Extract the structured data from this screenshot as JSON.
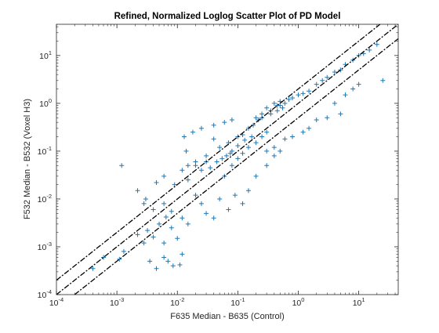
{
  "chart_data": {
    "type": "scatter",
    "title": "Refined, Normalized Loglog Scatter Plot of PD Model",
    "xlabel": "F635 Median - B635 (Control)",
    "ylabel": "F532 Median - B532 (Voxel H3)",
    "xscale": "log",
    "yscale": "log",
    "xlim": [
      0.0001,
      45
    ],
    "ylim": [
      0.0001,
      45
    ],
    "grid": false,
    "marker": "+",
    "marker_color": "#1f77b4",
    "line_color": "#000000",
    "x_ticks": [
      {
        "value": 0.0001,
        "base": "10",
        "exp": "-4"
      },
      {
        "value": 0.001,
        "base": "10",
        "exp": "-3"
      },
      {
        "value": 0.01,
        "base": "10",
        "exp": "-2"
      },
      {
        "value": 0.1,
        "base": "10",
        "exp": "-1"
      },
      {
        "value": 1,
        "base": "10",
        "exp": "0"
      },
      {
        "value": 10,
        "base": "10",
        "exp": "1"
      }
    ],
    "y_ticks": [
      {
        "value": 0.0001,
        "base": "10",
        "exp": "-4"
      },
      {
        "value": 0.001,
        "base": "10",
        "exp": "-3"
      },
      {
        "value": 0.01,
        "base": "10",
        "exp": "-2"
      },
      {
        "value": 0.1,
        "base": "10",
        "exp": "-1"
      },
      {
        "value": 1,
        "base": "10",
        "exp": "0"
      },
      {
        "value": 10,
        "base": "10",
        "exp": "1"
      }
    ],
    "reference_lines": [
      {
        "y_over_x": 2.0,
        "style": "dash-dot"
      },
      {
        "y_over_x": 1.0,
        "style": "dash-dot"
      },
      {
        "y_over_x": 0.5,
        "style": "dash-dot"
      }
    ],
    "series": [
      {
        "points": [
          [
            0.0012,
            0.05
          ],
          [
            0.0006,
            0.0006
          ],
          [
            0.0004,
            0.00035
          ],
          [
            0.0011,
            0.00055
          ],
          [
            0.0013,
            0.0008
          ],
          [
            0.0022,
            0.0018
          ],
          [
            0.0028,
            0.0012
          ],
          [
            0.0035,
            0.0005
          ],
          [
            0.0045,
            0.00035
          ],
          [
            0.006,
            0.0006
          ],
          [
            0.007,
            0.0005
          ],
          [
            0.0085,
            0.0004
          ],
          [
            0.012,
            0.0007
          ],
          [
            0.011,
            0.00042
          ],
          [
            0.006,
            0.0012
          ],
          [
            0.004,
            0.0016
          ],
          [
            0.0032,
            0.0022
          ],
          [
            0.005,
            0.003
          ],
          [
            0.0065,
            0.0042
          ],
          [
            0.008,
            0.0055
          ],
          [
            0.0022,
            0.015
          ],
          [
            0.0028,
            0.008
          ],
          [
            0.0045,
            0.022
          ],
          [
            0.006,
            0.03
          ],
          [
            0.009,
            0.02
          ],
          [
            0.012,
            0.04
          ],
          [
            0.015,
            0.05
          ],
          [
            0.02,
            0.06
          ],
          [
            0.03,
            0.08
          ],
          [
            0.05,
            0.12
          ],
          [
            0.07,
            0.15
          ],
          [
            0.1,
            0.2
          ],
          [
            0.013,
            0.2
          ],
          [
            0.014,
            0.1
          ],
          [
            0.018,
            0.25
          ],
          [
            0.025,
            0.3
          ],
          [
            0.04,
            0.35
          ],
          [
            0.06,
            0.4
          ],
          [
            0.08,
            0.45
          ],
          [
            0.04,
            0.18
          ],
          [
            0.02,
            0.012
          ],
          [
            0.025,
            0.008
          ],
          [
            0.03,
            0.005
          ],
          [
            0.04,
            0.004
          ],
          [
            0.05,
            0.01
          ],
          [
            0.07,
            0.006
          ],
          [
            0.09,
            0.012
          ],
          [
            0.12,
            0.008
          ],
          [
            0.15,
            0.015
          ],
          [
            0.2,
            0.03
          ],
          [
            0.3,
            0.05
          ],
          [
            0.4,
            0.08
          ],
          [
            0.012,
            0.004
          ],
          [
            0.015,
            0.003
          ],
          [
            0.008,
            0.0025
          ],
          [
            0.01,
            0.0015
          ],
          [
            0.003,
            0.01
          ],
          [
            0.004,
            0.006
          ],
          [
            0.006,
            0.008
          ],
          [
            0.015,
            0.025
          ],
          [
            0.06,
            0.03
          ],
          [
            0.08,
            0.05
          ],
          [
            0.1,
            0.07
          ],
          [
            0.12,
            0.09
          ],
          [
            0.15,
            0.12
          ],
          [
            0.2,
            0.15
          ],
          [
            0.25,
            0.2
          ],
          [
            0.3,
            0.25
          ],
          [
            0.12,
            0.22
          ],
          [
            0.15,
            0.3
          ],
          [
            0.18,
            0.35
          ],
          [
            0.22,
            0.45
          ],
          [
            0.25,
            0.5
          ],
          [
            0.35,
            0.6
          ],
          [
            0.45,
            0.7
          ],
          [
            0.5,
            0.9
          ],
          [
            0.08,
            0.1
          ],
          [
            0.1,
            0.13
          ],
          [
            0.13,
            0.17
          ],
          [
            0.17,
            0.2
          ],
          [
            0.6,
            1.0
          ],
          [
            0.7,
            1.2
          ],
          [
            0.8,
            1.3
          ],
          [
            1.0,
            1.5
          ],
          [
            1.2,
            1.6
          ],
          [
            1.5,
            1.8
          ],
          [
            2.0,
            2.5
          ],
          [
            2.5,
            3.0
          ],
          [
            3.0,
            3.5
          ],
          [
            4.0,
            4.5
          ],
          [
            5.0,
            5.0
          ],
          [
            6.0,
            6.5
          ],
          [
            8.0,
            8.0
          ],
          [
            10.0,
            10.0
          ],
          [
            12.0,
            11.0
          ],
          [
            15.0,
            13.0
          ],
          [
            20.0,
            17.0
          ],
          [
            25.0,
            3.0
          ],
          [
            3.0,
            0.5
          ],
          [
            5.0,
            0.6
          ],
          [
            2.0,
            0.45
          ],
          [
            1.5,
            0.3
          ],
          [
            1.2,
            0.25
          ],
          [
            0.8,
            0.2
          ],
          [
            0.6,
            0.18
          ],
          [
            0.5,
            0.1
          ],
          [
            0.4,
            0.12
          ],
          [
            0.3,
            0.1
          ],
          [
            8.0,
            2.0
          ],
          [
            10.0,
            2.5
          ],
          [
            6.0,
            1.5
          ],
          [
            4.0,
            1.0
          ],
          [
            0.2,
            0.5
          ],
          [
            0.25,
            0.6
          ],
          [
            0.3,
            0.8
          ],
          [
            0.35,
            0.7
          ],
          [
            0.4,
            1.0
          ],
          [
            0.45,
            0.9
          ],
          [
            0.5,
            1.1
          ],
          [
            0.55,
            0.8
          ],
          [
            0.02,
            0.05
          ],
          [
            0.03,
            0.06
          ],
          [
            0.025,
            0.04
          ],
          [
            0.035,
            0.045
          ],
          [
            0.045,
            0.06
          ],
          [
            0.055,
            0.07
          ],
          [
            0.065,
            0.08
          ],
          [
            0.075,
            0.09
          ]
        ]
      }
    ]
  }
}
